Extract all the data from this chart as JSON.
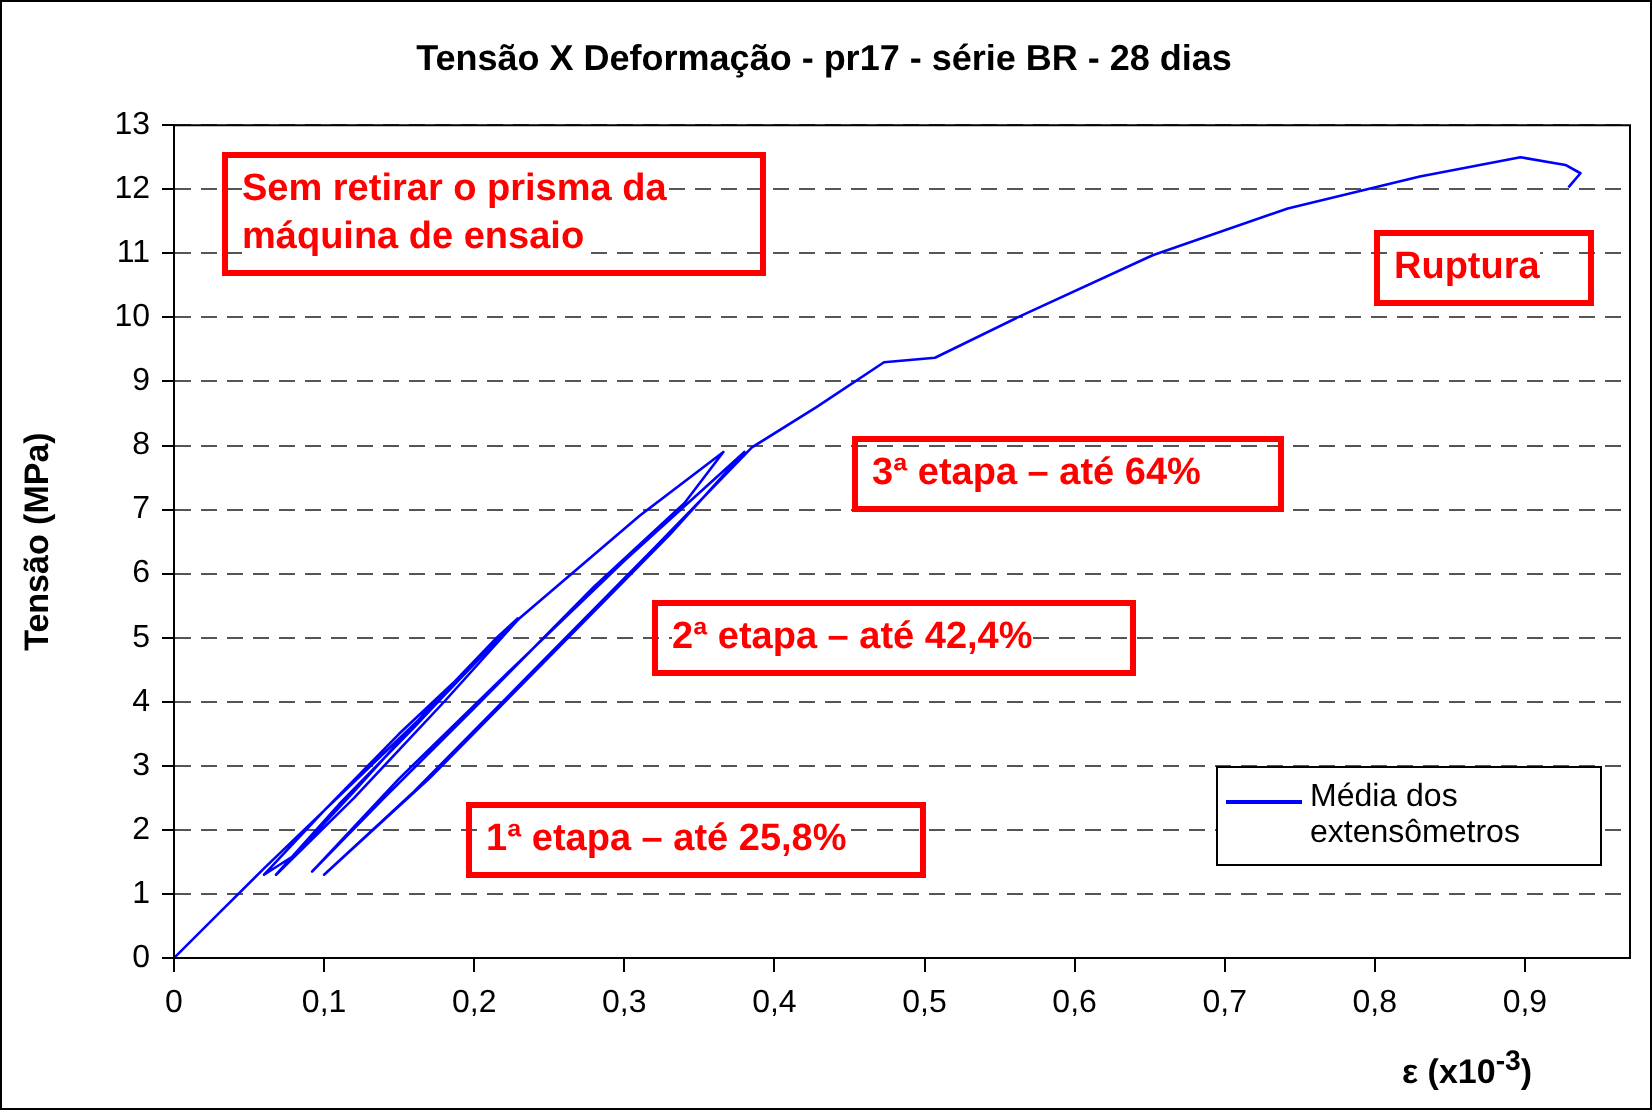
{
  "chart_data": {
    "type": "line",
    "title": "Tensão X Deformação - pr17 - série BR - 28 dias",
    "xlabel": "ε (x10$^{-3}$)",
    "ylabel": "Tensão (MPa)",
    "xlim": [
      0,
      0.97
    ],
    "ylim": [
      0,
      13
    ],
    "xticks": [
      0,
      {
        "value": 0.1,
        "label": "0,1"
      },
      {
        "value": 0.2,
        "label": "0,2"
      },
      {
        "value": 0.3,
        "label": "0,3"
      },
      {
        "value": 0.4,
        "label": "0,4"
      },
      {
        "value": 0.5,
        "label": "0,5"
      },
      {
        "value": 0.6,
        "label": "0,6"
      },
      {
        "value": 0.7,
        "label": "0,7"
      },
      {
        "value": 0.8,
        "label": "0,8"
      },
      {
        "value": 0.9,
        "label": "0,9"
      }
    ],
    "yticks": [
      0,
      1,
      2,
      3,
      4,
      5,
      6,
      7,
      8,
      9,
      10,
      11,
      12,
      13
    ],
    "grid": "y",
    "legend": "bottom right",
    "marker": "none",
    "line_style": "solid",
    "series": [
      {
        "name": "Média dos extensômetros",
        "color": "#0000ff",
        "x": [
          0,
          0.03,
          0.06,
          0.1,
          0.14,
          0.18,
          0.229,
          0.215,
          0.17,
          0.12,
          0.08,
          0.06,
          0.1,
          0.15,
          0.2,
          0.228,
          0.18,
          0.12,
          0.068,
          0.11,
          0.16,
          0.2,
          0.23,
          0.27,
          0.31,
          0.366,
          0.34,
          0.28,
          0.2,
          0.14,
          0.092,
          0.15,
          0.22,
          0.3,
          0.38,
          0.33,
          0.25,
          0.17,
          0.1,
          0.16,
          0.24,
          0.32,
          0.385,
          0.428,
          0.473,
          0.507,
          0.562,
          0.652,
          0.742,
          0.83,
          0.897,
          0.927,
          0.937,
          0.929
        ],
        "values": [
          0,
          0.7,
          1.4,
          2.3,
          3.2,
          4.1,
          5.3,
          5.0,
          3.9,
          2.6,
          1.6,
          1.3,
          2.3,
          3.5,
          4.6,
          5.25,
          4.0,
          2.5,
          1.3,
          2.4,
          3.6,
          4.6,
          5.3,
          6.1,
          6.9,
          7.9,
          7.1,
          5.8,
          3.9,
          2.5,
          1.35,
          2.8,
          4.4,
          6.2,
          7.9,
          6.6,
          4.7,
          2.8,
          1.3,
          2.6,
          4.5,
          6.4,
          7.97,
          8.6,
          9.3,
          9.37,
          10.0,
          10.97,
          11.7,
          12.2,
          12.5,
          12.38,
          12.25,
          12.03
        ]
      }
    ],
    "annotations": [
      "Sem retirar o prisma da máquina de ensaio",
      "Ruptura",
      "3ª etapa – até 64%",
      "2ª etapa – até 42,4%",
      "1ª etapa – até 25,8%"
    ]
  }
}
